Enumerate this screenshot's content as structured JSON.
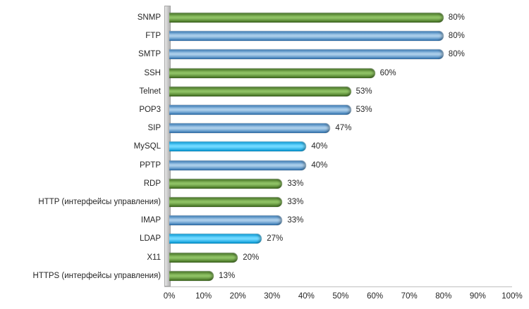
{
  "chart_data": {
    "type": "bar",
    "orientation": "horizontal",
    "categories": [
      "SNMP",
      "FTP",
      "SMTP",
      "SSH",
      "Telnet",
      "POP3",
      "SIP",
      "MySQL",
      "PPTP",
      "RDP",
      "HTTP (интерфейсы управления)",
      "IMAP",
      "LDAP",
      "X11",
      "HTTPS (интерфейсы управления)"
    ],
    "values": [
      80,
      80,
      80,
      60,
      53,
      53,
      47,
      40,
      40,
      33,
      33,
      33,
      27,
      20,
      13
    ],
    "data_labels": [
      "80%",
      "80%",
      "80%",
      "60%",
      "53%",
      "53%",
      "47%",
      "40%",
      "40%",
      "33%",
      "33%",
      "33%",
      "27%",
      "20%",
      "13%"
    ],
    "bar_colors": [
      "green",
      "blue",
      "blue",
      "green",
      "green",
      "blue",
      "blue",
      "cyan",
      "blue",
      "green",
      "green",
      "blue",
      "cyan",
      "green",
      "green"
    ],
    "x_ticks": [
      "0%",
      "10%",
      "20%",
      "30%",
      "40%",
      "50%",
      "60%",
      "70%",
      "80%",
      "90%",
      "100%"
    ],
    "xlim": [
      0,
      100
    ],
    "title": "",
    "legend": "none",
    "grid": "off",
    "bar_style": "cylinder-3d",
    "palette": {
      "green": {
        "dark": "#3f6d1e",
        "light": "#8dc063"
      },
      "blue": {
        "dark": "#2f75b5",
        "light": "#a8cce9"
      },
      "cyan": {
        "dark": "#0099d8",
        "light": "#6fd8ff"
      }
    },
    "text_color": "#262626",
    "wall_color": "#c9c9c9"
  }
}
